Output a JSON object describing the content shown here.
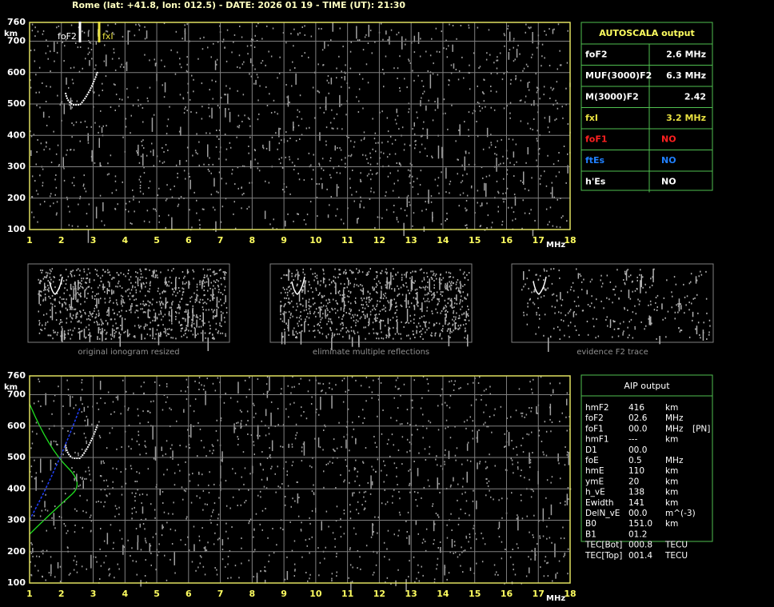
{
  "header": "Rome (lat: +41.8, lon: 012.5) - DATE: 2026 01 19 - TIME (UT): 21:30",
  "plots": [
    {
      "y_unit": "km",
      "x_unit": "MHz",
      "xlim": [
        1,
        18
      ],
      "ylim": [
        100,
        760
      ],
      "xticks": [
        1,
        2,
        3,
        4,
        5,
        6,
        7,
        8,
        9,
        10,
        11,
        12,
        13,
        14,
        15,
        16,
        17,
        18
      ],
      "yticks": [
        100,
        200,
        300,
        400,
        500,
        600,
        700,
        760
      ],
      "trace_labels": [
        "foF2",
        "fxI"
      ]
    },
    {
      "y_unit": "km",
      "x_unit": "MHz",
      "xlim": [
        1,
        18
      ],
      "ylim": [
        100,
        760
      ],
      "xticks": [
        1,
        2,
        3,
        4,
        5,
        6,
        7,
        8,
        9,
        10,
        11,
        12,
        13,
        14,
        15,
        16,
        17,
        18
      ],
      "yticks": [
        100,
        200,
        300,
        400,
        500,
        600,
        700,
        760
      ]
    }
  ],
  "autoscala": {
    "title": "AUTOSCALA output",
    "rows": [
      {
        "name": "foF2",
        "value": "2.6 MHz",
        "color": "#ffffff"
      },
      {
        "name": "MUF(3000)F2",
        "value": "6.3 MHz",
        "color": "#ffffff"
      },
      {
        "name": "M(3000)F2",
        "value": "2.42",
        "color": "#ffffff"
      },
      {
        "name": "fxI",
        "value": "3.2 MHz",
        "color": "#e8e040"
      },
      {
        "name": "foF1",
        "value": "NO",
        "color": "#ff2020"
      },
      {
        "name": "ftEs",
        "value": "NO",
        "color": "#2080ff"
      },
      {
        "name": "h'Es",
        "value": "NO",
        "color": "#ffffff"
      }
    ]
  },
  "thumbnails": [
    "original ionogram resized",
    "eliminate multiple reflections",
    "evidence F2 trace"
  ],
  "aip": {
    "title": "AIP output",
    "rows": [
      [
        "hmF2",
        "416",
        "km"
      ],
      [
        "foF2",
        "02.6",
        "MHz"
      ],
      [
        "foF1",
        "00.0",
        "MHz",
        "[PN]"
      ],
      [
        "hmF1",
        "---",
        "km"
      ],
      [
        "D1",
        "00.0"
      ],
      [
        "foE",
        "0.5",
        "MHz"
      ],
      [
        "hmE",
        "110",
        "km"
      ],
      [
        "ymE",
        "20",
        "km"
      ],
      [
        "h_vE",
        "138",
        "km"
      ],
      [
        "Ewidth",
        "141",
        "km"
      ],
      [
        "DelN_vE",
        "00.0",
        "m^(-3)"
      ],
      [
        "B0",
        "151.0",
        "km"
      ],
      [
        "B1",
        "01.2"
      ],
      [
        "TEC[Bot]",
        "000.8",
        "TECU"
      ],
      [
        "TEC[Top]",
        "001.4",
        "TECU"
      ]
    ]
  }
}
